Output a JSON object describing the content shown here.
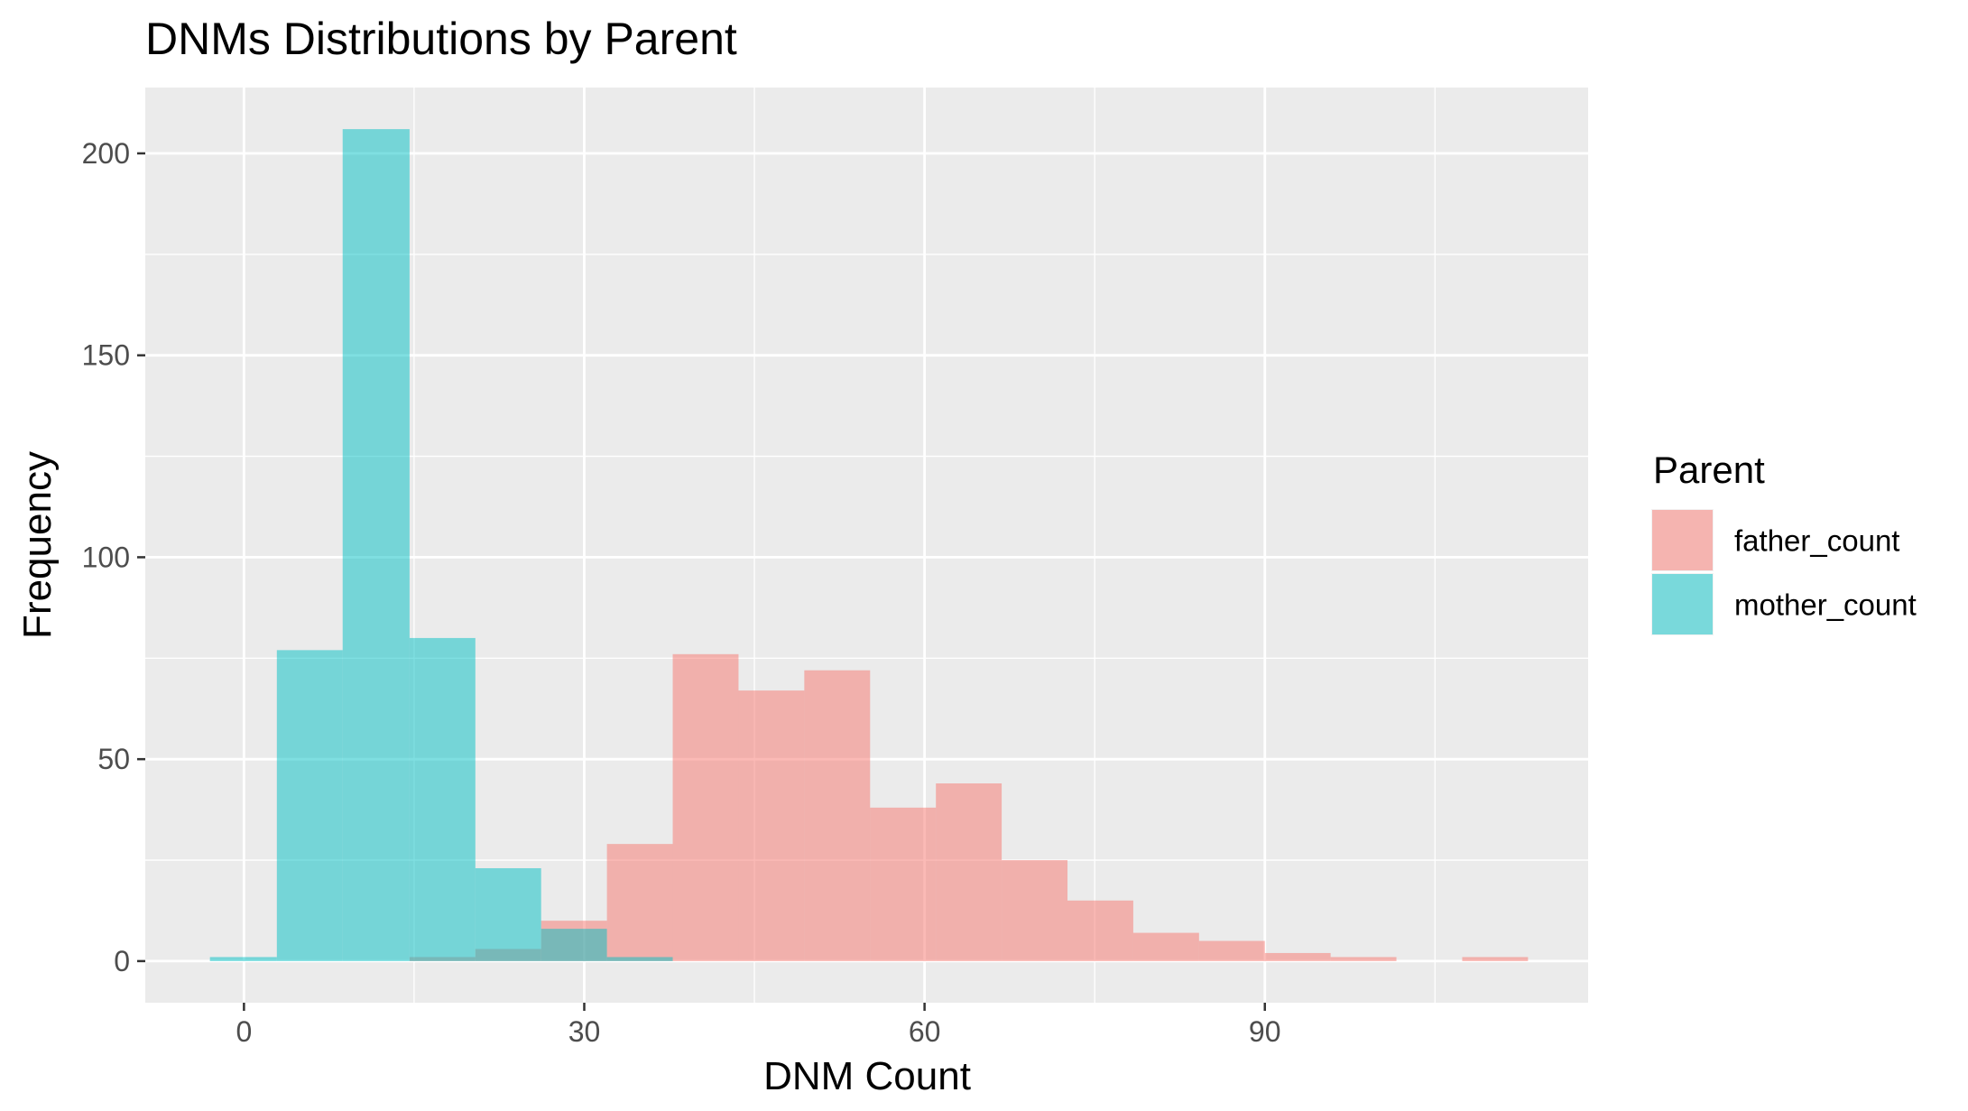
{
  "chart_data": {
    "type": "bar",
    "subtype": "overlapping histogram",
    "title": "DNMs Distributions by Parent",
    "xlabel": "DNM Count",
    "ylabel": "Frequency",
    "xlim": [
      -8.7,
      118.5
    ],
    "ylim": [
      -10.3,
      216.3
    ],
    "x_ticks": [
      0,
      30,
      60,
      90
    ],
    "y_ticks": [
      0,
      50,
      100,
      150,
      200
    ],
    "grid": true,
    "legend": {
      "title": "Parent",
      "position": "right"
    },
    "bin_width": 5.8,
    "series": [
      {
        "name": "father_count",
        "color": "#F8766D",
        "bins": [
          {
            "x0": 14.6,
            "x1": 20.4,
            "count": 1
          },
          {
            "x0": 20.4,
            "x1": 26.2,
            "count": 3
          },
          {
            "x0": 26.2,
            "x1": 32.0,
            "count": 10
          },
          {
            "x0": 32.0,
            "x1": 37.8,
            "count": 29
          },
          {
            "x0": 37.8,
            "x1": 43.6,
            "count": 76
          },
          {
            "x0": 43.6,
            "x1": 49.4,
            "count": 67
          },
          {
            "x0": 49.4,
            "x1": 55.2,
            "count": 72
          },
          {
            "x0": 55.2,
            "x1": 61.0,
            "count": 38
          },
          {
            "x0": 61.0,
            "x1": 66.8,
            "count": 44
          },
          {
            "x0": 66.8,
            "x1": 72.6,
            "count": 25
          },
          {
            "x0": 72.6,
            "x1": 78.4,
            "count": 15
          },
          {
            "x0": 78.4,
            "x1": 84.2,
            "count": 7
          },
          {
            "x0": 84.2,
            "x1": 90.0,
            "count": 5
          },
          {
            "x0": 90.0,
            "x1": 95.8,
            "count": 2
          },
          {
            "x0": 95.8,
            "x1": 101.6,
            "count": 1
          },
          {
            "x0": 107.4,
            "x1": 113.2,
            "count": 1
          }
        ]
      },
      {
        "name": "mother_count",
        "color": "#00BFC4",
        "bins": [
          {
            "x0": -3.0,
            "x1": 2.9,
            "count": 1
          },
          {
            "x0": 2.9,
            "x1": 8.7,
            "count": 77
          },
          {
            "x0": 8.7,
            "x1": 14.6,
            "count": 206
          },
          {
            "x0": 14.6,
            "x1": 20.4,
            "count": 80
          },
          {
            "x0": 20.4,
            "x1": 26.2,
            "count": 23
          },
          {
            "x0": 26.2,
            "x1": 32.0,
            "count": 8
          },
          {
            "x0": 32.0,
            "x1": 37.8,
            "count": 1
          }
        ]
      }
    ]
  }
}
